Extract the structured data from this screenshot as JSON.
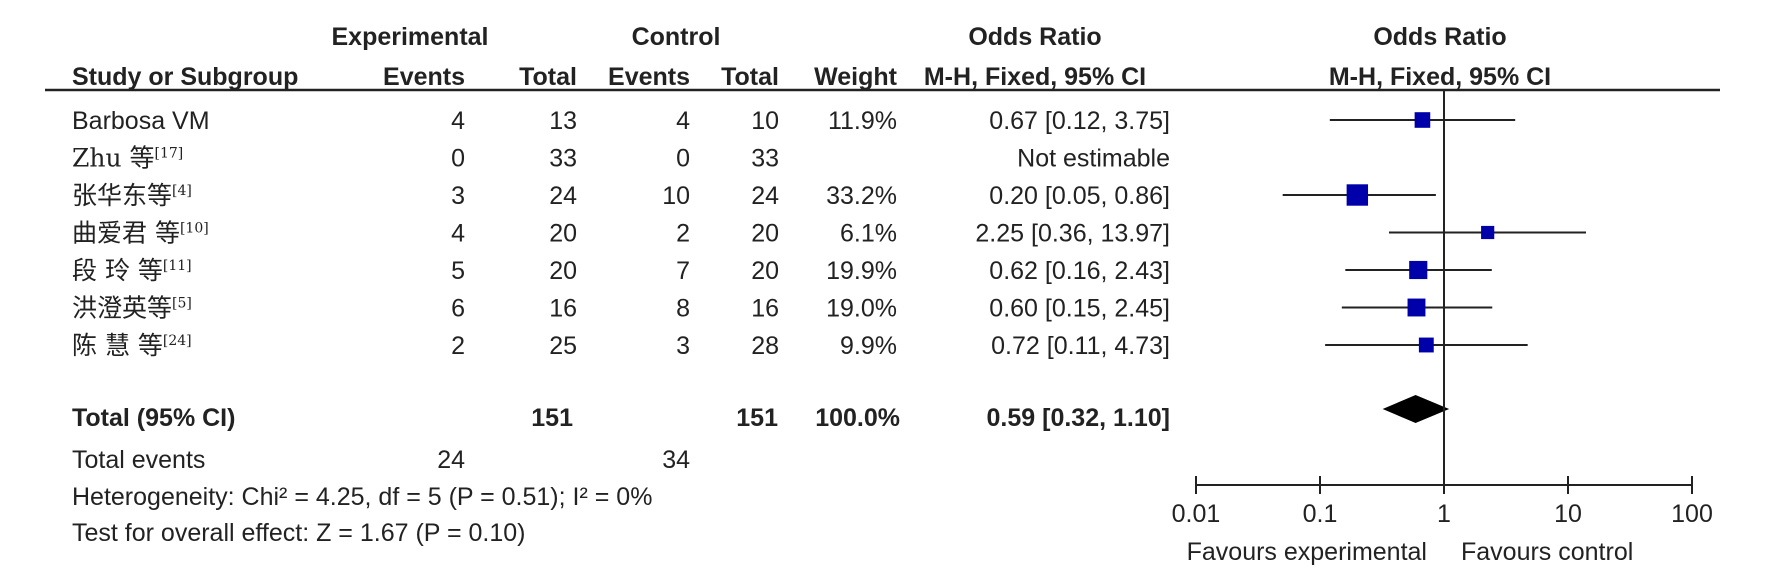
{
  "headers": {
    "experimental": "Experimental",
    "control": "Control",
    "odds_ratio_left": "Odds Ratio",
    "odds_ratio_right": "Odds Ratio",
    "study": "Study or Subgroup",
    "events_exp": "Events",
    "total_exp": "Total",
    "events_ctl": "Events",
    "total_ctl": "Total",
    "weight": "Weight",
    "method_left": "M-H, Fixed, 95% CI",
    "method_right": "M-H, Fixed, 95% CI"
  },
  "studies": [
    {
      "name": "Barbosa VM",
      "ref": "",
      "events_exp": "4",
      "total_exp": "13",
      "events_ctl": "4",
      "total_ctl": "10",
      "weight": "11.9%",
      "ci_text": "0.67 [0.12, 3.75]",
      "or": 0.67,
      "lo": 0.12,
      "hi": 3.75,
      "w": 11.9
    },
    {
      "name": "Zhu 等",
      "ref": "[17]",
      "events_exp": "0",
      "total_exp": "33",
      "events_ctl": "0",
      "total_ctl": "33",
      "weight": "",
      "ci_text": "Not estimable",
      "or": null,
      "lo": null,
      "hi": null,
      "w": 0
    },
    {
      "name": "张华东等",
      "ref": "[4]",
      "events_exp": "3",
      "total_exp": "24",
      "events_ctl": "10",
      "total_ctl": "24",
      "weight": "33.2%",
      "ci_text": "0.20 [0.05, 0.86]",
      "or": 0.2,
      "lo": 0.05,
      "hi": 0.86,
      "w": 33.2
    },
    {
      "name": "曲爱君 等",
      "ref": "[10]",
      "events_exp": "4",
      "total_exp": "20",
      "events_ctl": "2",
      "total_ctl": "20",
      "weight": "6.1%",
      "ci_text": "2.25 [0.36, 13.97]",
      "or": 2.25,
      "lo": 0.36,
      "hi": 13.97,
      "w": 6.1
    },
    {
      "name": "段 玲 等",
      "ref": "[11]",
      "events_exp": "5",
      "total_exp": "20",
      "events_ctl": "7",
      "total_ctl": "20",
      "weight": "19.9%",
      "ci_text": "0.62 [0.16, 2.43]",
      "or": 0.62,
      "lo": 0.16,
      "hi": 2.43,
      "w": 19.9
    },
    {
      "name": "洪澄英等",
      "ref": "[5]",
      "events_exp": "6",
      "total_exp": "16",
      "events_ctl": "8",
      "total_ctl": "16",
      "weight": "19.0%",
      "ci_text": "0.60 [0.15, 2.45]",
      "or": 0.6,
      "lo": 0.15,
      "hi": 2.45,
      "w": 19.0
    },
    {
      "name": "陈 慧 等",
      "ref": "[24]",
      "events_exp": "2",
      "total_exp": "25",
      "events_ctl": "3",
      "total_ctl": "28",
      "weight": "9.9%",
      "ci_text": "0.72 [0.11, 4.73]",
      "or": 0.72,
      "lo": 0.11,
      "hi": 4.73,
      "w": 9.9
    }
  ],
  "total": {
    "label": "Total (95% CI)",
    "total_exp": "151",
    "total_ctl": "151",
    "weight": "100.0%",
    "ci_text": "0.59 [0.32, 1.10]",
    "or": 0.59,
    "lo": 0.32,
    "hi": 1.1
  },
  "total_events": {
    "label": "Total events",
    "exp": "24",
    "ctl": "34"
  },
  "heterogeneity": "Heterogeneity: Chi² = 4.25, df = 5 (P = 0.51); I² = 0%",
  "overall_effect": "Test for overall effect: Z = 1.67 (P = 0.10)",
  "chart_data": {
    "type": "forest",
    "scale": "log",
    "xlim": [
      0.01,
      100
    ],
    "ticks": [
      0.01,
      0.1,
      1,
      10,
      100
    ],
    "tick_labels": [
      "0.01",
      "0.1",
      "1",
      "10",
      "100"
    ],
    "favours_left": "Favours experimental",
    "favours_right": "Favours control"
  },
  "colors": {
    "square": "#0000aa",
    "diamond": "#000000",
    "line": "#222222"
  }
}
